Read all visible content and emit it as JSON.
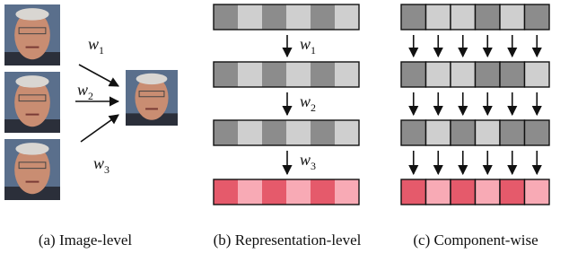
{
  "panels": [
    {
      "caption": "(a) Image-level",
      "weights": [
        {
          "symbol": "w",
          "subscript": "1"
        },
        {
          "symbol": "w",
          "subscript": "2"
        },
        {
          "symbol": "w",
          "subscript": "3"
        }
      ]
    },
    {
      "caption": "(b) Representation-level",
      "weights": [
        {
          "symbol": "w",
          "subscript": "1"
        },
        {
          "symbol": "w",
          "subscript": "2"
        },
        {
          "symbol": "w",
          "subscript": "3"
        }
      ]
    },
    {
      "caption": "(c) Component-wise"
    }
  ]
}
